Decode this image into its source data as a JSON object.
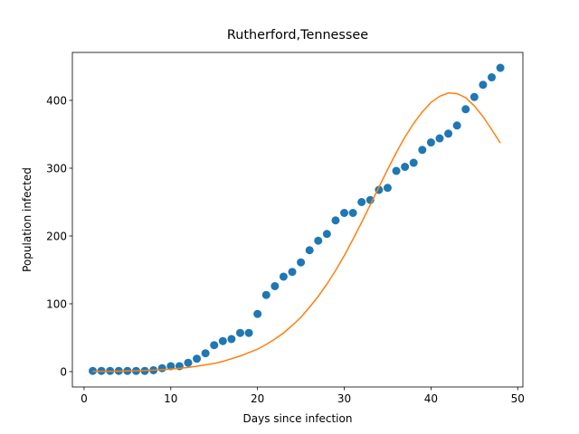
{
  "chart_data": {
    "type": "scatter",
    "title": "Rutherford,Tennessee",
    "xlabel": "Days since infection",
    "ylabel": "Population infected",
    "x": [
      1,
      2,
      3,
      4,
      5,
      6,
      7,
      8,
      9,
      10,
      11,
      12,
      13,
      14,
      15,
      16,
      17,
      18,
      19,
      20,
      21,
      22,
      23,
      24,
      25,
      26,
      27,
      28,
      29,
      30,
      31,
      32,
      33,
      34,
      35,
      36,
      37,
      38,
      39,
      40,
      41,
      42,
      43,
      44,
      45,
      46,
      47,
      48
    ],
    "series": [
      {
        "type": "scatter",
        "color": "#1f77b4",
        "values": [
          1,
          1,
          1,
          1,
          1,
          1,
          1,
          2,
          5,
          8,
          8,
          13,
          19,
          27,
          39,
          45,
          48,
          57,
          57,
          85,
          113,
          126,
          140,
          147,
          161,
          179,
          193,
          203,
          223,
          234,
          234,
          250,
          253,
          268,
          271,
          296,
          302,
          308,
          327,
          338,
          344,
          351,
          363,
          387,
          405,
          423,
          434,
          448
        ]
      },
      {
        "type": "line",
        "color": "#ff7f0e",
        "values": [
          0.3,
          0.4,
          0.5,
          0.7,
          0.9,
          1.2,
          1.6,
          2.1,
          2.8,
          3.7,
          4.8,
          6.2,
          8,
          10,
          12,
          15,
          19,
          23,
          28,
          33,
          40,
          48,
          57,
          68,
          80,
          95,
          111,
          129,
          149,
          171,
          195,
          220,
          246,
          272,
          298,
          323,
          346,
          366,
          383,
          397,
          406,
          411,
          410,
          404,
          392,
          376,
          357,
          337
        ]
      }
    ],
    "xlim": [
      -1.35,
      50.6
    ],
    "ylim": [
      -22.7,
      470.7
    ],
    "xticks": [
      0,
      10,
      20,
      30,
      40,
      50
    ],
    "yticks": [
      0,
      100,
      200,
      300,
      400
    ]
  }
}
